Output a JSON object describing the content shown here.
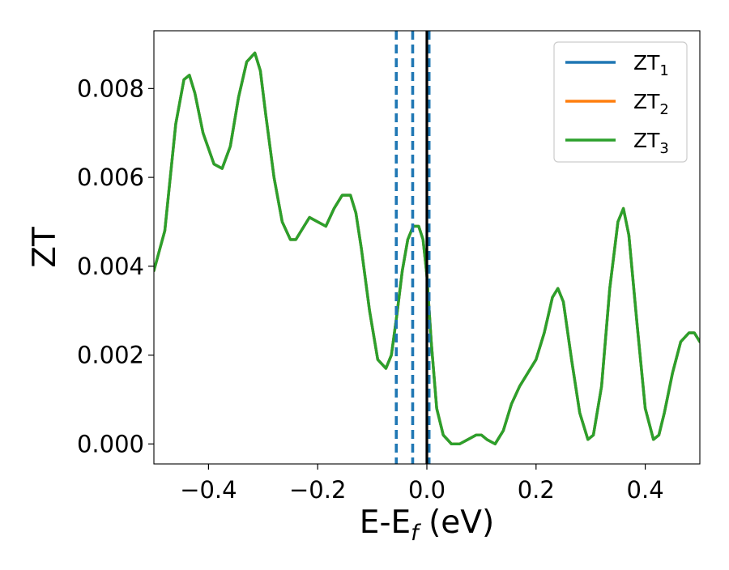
{
  "chart_data": {
    "type": "line",
    "title": "",
    "xlabel": "E-E",
    "xlabel_sub": "f",
    "xlabel_unit": " (eV)",
    "ylabel": "ZT",
    "xlim": [
      -0.5,
      0.5
    ],
    "ylim": [
      -0.00045,
      0.0093
    ],
    "xticks": [
      -0.4,
      -0.2,
      0.0,
      0.2,
      0.4
    ],
    "xtick_labels": [
      "−0.4",
      "−0.2",
      "0.0",
      "0.2",
      "0.4"
    ],
    "yticks": [
      0.0,
      0.002,
      0.004,
      0.006,
      0.008
    ],
    "ytick_labels": [
      "0.000",
      "0.002",
      "0.004",
      "0.006",
      "0.008"
    ],
    "grid": false,
    "legend_position": "top-right",
    "vertical_lines": [
      {
        "x": -0.056,
        "style": "dashed",
        "color": "#1f77b4"
      },
      {
        "x": -0.026,
        "style": "dashed",
        "color": "#1f77b4"
      },
      {
        "x": 0.004,
        "style": "dashed",
        "color": "#1f77b4"
      },
      {
        "x": 0.0,
        "style": "solid",
        "color": "#000000"
      }
    ],
    "x": [
      -0.5,
      -0.48,
      -0.46,
      -0.445,
      -0.435,
      -0.425,
      -0.41,
      -0.39,
      -0.375,
      -0.36,
      -0.345,
      -0.33,
      -0.315,
      -0.305,
      -0.295,
      -0.28,
      -0.265,
      -0.25,
      -0.24,
      -0.23,
      -0.215,
      -0.2,
      -0.185,
      -0.17,
      -0.155,
      -0.14,
      -0.13,
      -0.12,
      -0.105,
      -0.09,
      -0.075,
      -0.065,
      -0.055,
      -0.045,
      -0.035,
      -0.025,
      -0.015,
      -0.007,
      0.0,
      0.008,
      0.018,
      0.03,
      0.045,
      0.06,
      0.075,
      0.09,
      0.1,
      0.11,
      0.125,
      0.14,
      0.155,
      0.17,
      0.185,
      0.2,
      0.215,
      0.23,
      0.24,
      0.25,
      0.265,
      0.28,
      0.295,
      0.305,
      0.32,
      0.335,
      0.35,
      0.36,
      0.37,
      0.385,
      0.4,
      0.415,
      0.425,
      0.435,
      0.45,
      0.465,
      0.48,
      0.49,
      0.5
    ],
    "series": [
      {
        "name": "ZT₁",
        "color": "#1f77b4",
        "values": [
          0.0039,
          0.0048,
          0.0072,
          0.0082,
          0.0083,
          0.0079,
          0.007,
          0.0063,
          0.0062,
          0.0067,
          0.0078,
          0.0086,
          0.0088,
          0.0084,
          0.0074,
          0.006,
          0.005,
          0.0046,
          0.0046,
          0.0048,
          0.0051,
          0.005,
          0.0049,
          0.0053,
          0.0056,
          0.0056,
          0.0052,
          0.0044,
          0.003,
          0.0019,
          0.0017,
          0.002,
          0.0029,
          0.0039,
          0.0046,
          0.0049,
          0.0049,
          0.0046,
          0.0038,
          0.0023,
          0.0008,
          0.0002,
          0.0,
          0.0,
          0.0001,
          0.0002,
          0.0002,
          0.0001,
          0.0,
          0.0003,
          0.0009,
          0.0013,
          0.0016,
          0.0019,
          0.0025,
          0.0033,
          0.0035,
          0.0032,
          0.0019,
          0.0007,
          0.0001,
          0.0002,
          0.0013,
          0.0035,
          0.005,
          0.0053,
          0.0047,
          0.0027,
          0.0008,
          0.0001,
          0.0002,
          0.0007,
          0.0016,
          0.0023,
          0.0025,
          0.0025,
          0.0023
        ]
      },
      {
        "name": "ZT₂",
        "color": "#ff7f0e",
        "values": [
          0.0039,
          0.0048,
          0.0072,
          0.0082,
          0.0083,
          0.0079,
          0.007,
          0.0063,
          0.0062,
          0.0067,
          0.0078,
          0.0086,
          0.0088,
          0.0084,
          0.0074,
          0.006,
          0.005,
          0.0046,
          0.0046,
          0.0048,
          0.0051,
          0.005,
          0.0049,
          0.0053,
          0.0056,
          0.0056,
          0.0052,
          0.0044,
          0.003,
          0.0019,
          0.0017,
          0.002,
          0.0029,
          0.0039,
          0.0046,
          0.0049,
          0.0049,
          0.0046,
          0.0038,
          0.0023,
          0.0008,
          0.0002,
          0.0,
          0.0,
          0.0001,
          0.0002,
          0.0002,
          0.0001,
          0.0,
          0.0003,
          0.0009,
          0.0013,
          0.0016,
          0.0019,
          0.0025,
          0.0033,
          0.0035,
          0.0032,
          0.0019,
          0.0007,
          0.0001,
          0.0002,
          0.0013,
          0.0035,
          0.005,
          0.0053,
          0.0047,
          0.0027,
          0.0008,
          0.0001,
          0.0002,
          0.0007,
          0.0016,
          0.0023,
          0.0025,
          0.0025,
          0.0023
        ]
      },
      {
        "name": "ZT₃",
        "color": "#2ca02c",
        "values": [
          0.0039,
          0.0048,
          0.0072,
          0.0082,
          0.0083,
          0.0079,
          0.007,
          0.0063,
          0.0062,
          0.0067,
          0.0078,
          0.0086,
          0.0088,
          0.0084,
          0.0074,
          0.006,
          0.005,
          0.0046,
          0.0046,
          0.0048,
          0.0051,
          0.005,
          0.0049,
          0.0053,
          0.0056,
          0.0056,
          0.0052,
          0.0044,
          0.003,
          0.0019,
          0.0017,
          0.002,
          0.0029,
          0.0039,
          0.0046,
          0.0049,
          0.0049,
          0.0046,
          0.0038,
          0.0023,
          0.0008,
          0.0002,
          0.0,
          0.0,
          0.0001,
          0.0002,
          0.0002,
          0.0001,
          0.0,
          0.0003,
          0.0009,
          0.0013,
          0.0016,
          0.0019,
          0.0025,
          0.0033,
          0.0035,
          0.0032,
          0.0019,
          0.0007,
          0.0001,
          0.0002,
          0.0013,
          0.0035,
          0.005,
          0.0053,
          0.0047,
          0.0027,
          0.0008,
          0.0001,
          0.0002,
          0.0007,
          0.0016,
          0.0023,
          0.0025,
          0.0025,
          0.0023
        ]
      }
    ],
    "legend": [
      {
        "base": "ZT",
        "sub": "1",
        "color": "#1f77b4"
      },
      {
        "base": "ZT",
        "sub": "2",
        "color": "#ff7f0e"
      },
      {
        "base": "ZT",
        "sub": "3",
        "color": "#2ca02c"
      }
    ]
  }
}
